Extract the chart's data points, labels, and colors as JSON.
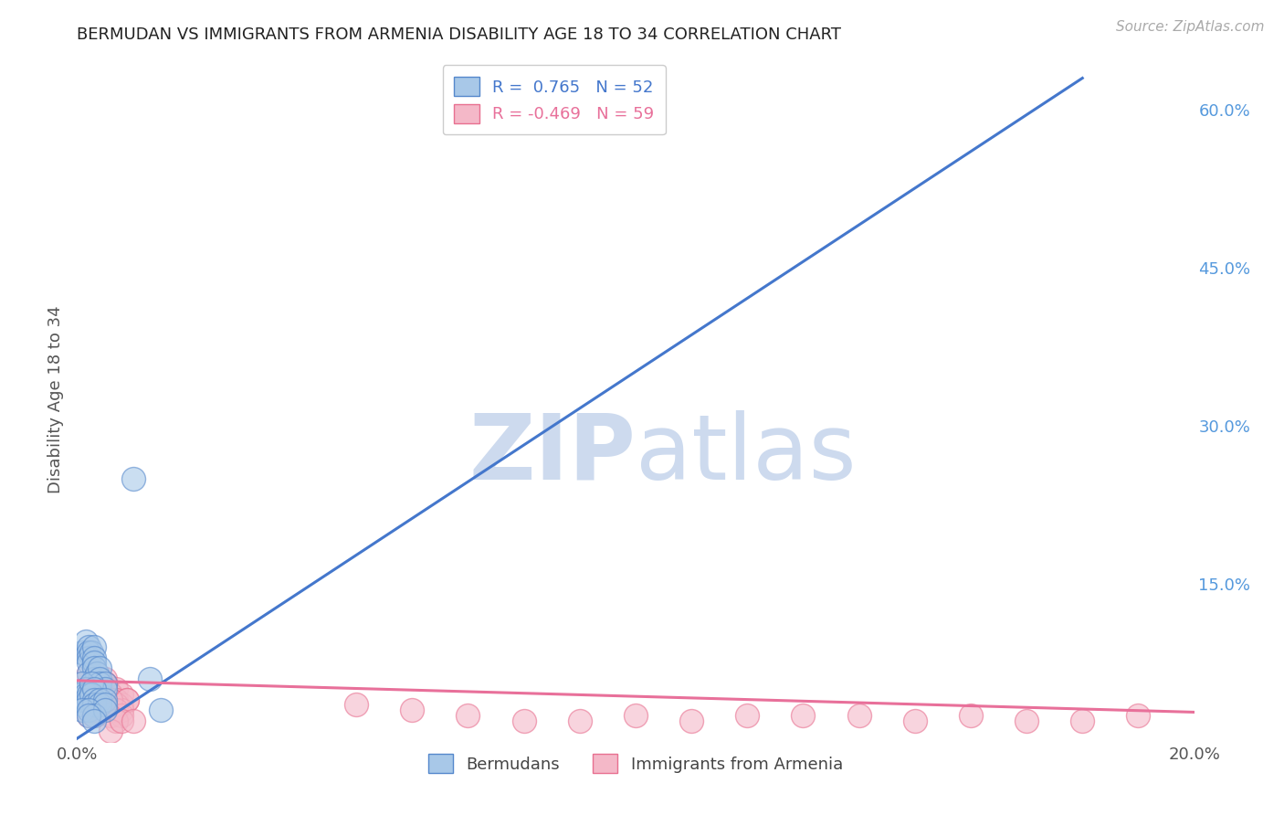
{
  "title": "BERMUDAN VS IMMIGRANTS FROM ARMENIA DISABILITY AGE 18 TO 34 CORRELATION CHART",
  "source": "Source: ZipAtlas.com",
  "ylabel": "Disability Age 18 to 34",
  "xlim": [
    0.0,
    0.2
  ],
  "ylim": [
    0.0,
    0.65
  ],
  "yticks_right": [
    0.0,
    0.15,
    0.3,
    0.45,
    0.6
  ],
  "ytick_labels_right": [
    "",
    "15.0%",
    "30.0%",
    "45.0%",
    "60.0%"
  ],
  "blue_R": 0.765,
  "blue_N": 52,
  "pink_R": -0.469,
  "pink_N": 59,
  "blue_color": "#a8c8e8",
  "pink_color": "#f4b8c8",
  "blue_edge_color": "#5588cc",
  "pink_edge_color": "#e87090",
  "blue_line_color": "#4477cc",
  "pink_line_color": "#e8709a",
  "blue_line_x0": 0.0,
  "blue_line_y0": 0.003,
  "blue_line_x1": 0.18,
  "blue_line_y1": 0.63,
  "pink_line_x0": 0.0,
  "pink_line_y0": 0.058,
  "pink_line_x1": 0.2,
  "pink_line_y1": 0.028,
  "blue_scatter_x": [
    0.001,
    0.0015,
    0.002,
    0.002,
    0.002,
    0.002,
    0.002,
    0.0025,
    0.003,
    0.003,
    0.003,
    0.003,
    0.003,
    0.003,
    0.003,
    0.0035,
    0.004,
    0.004,
    0.004,
    0.005,
    0.005,
    0.001,
    0.001,
    0.001,
    0.001,
    0.0005,
    0.0005,
    0.0008,
    0.0015,
    0.0015,
    0.0015,
    0.002,
    0.002,
    0.0025,
    0.0025,
    0.003,
    0.003,
    0.003,
    0.003,
    0.004,
    0.004,
    0.005,
    0.005,
    0.001,
    0.002,
    0.003,
    0.005,
    0.002,
    0.013,
    0.01,
    0.015,
    0.003
  ],
  "blue_scatter_y": [
    0.085,
    0.095,
    0.09,
    0.085,
    0.08,
    0.075,
    0.065,
    0.085,
    0.09,
    0.08,
    0.075,
    0.07,
    0.06,
    0.055,
    0.05,
    0.065,
    0.07,
    0.06,
    0.055,
    0.055,
    0.05,
    0.055,
    0.045,
    0.04,
    0.035,
    0.045,
    0.04,
    0.045,
    0.05,
    0.045,
    0.04,
    0.045,
    0.04,
    0.055,
    0.045,
    0.05,
    0.035,
    0.04,
    0.035,
    0.04,
    0.035,
    0.04,
    0.035,
    0.03,
    0.03,
    0.025,
    0.03,
    0.025,
    0.06,
    0.25,
    0.03,
    0.02
  ],
  "pink_scatter_x": [
    0.001,
    0.002,
    0.003,
    0.004,
    0.005,
    0.003,
    0.004,
    0.005,
    0.006,
    0.007,
    0.005,
    0.006,
    0.003,
    0.004,
    0.005,
    0.006,
    0.007,
    0.008,
    0.006,
    0.007,
    0.008,
    0.009,
    0.003,
    0.004,
    0.005,
    0.006,
    0.007,
    0.008,
    0.004,
    0.005,
    0.006,
    0.002,
    0.003,
    0.005,
    0.006,
    0.007,
    0.008,
    0.009,
    0.05,
    0.06,
    0.07,
    0.08,
    0.09,
    0.1,
    0.11,
    0.12,
    0.13,
    0.14,
    0.15,
    0.16,
    0.17,
    0.18,
    0.19,
    0.007,
    0.004,
    0.006,
    0.008,
    0.01,
    0.003
  ],
  "pink_scatter_y": [
    0.055,
    0.065,
    0.06,
    0.055,
    0.06,
    0.05,
    0.045,
    0.055,
    0.045,
    0.05,
    0.04,
    0.045,
    0.045,
    0.04,
    0.04,
    0.045,
    0.04,
    0.045,
    0.035,
    0.04,
    0.035,
    0.04,
    0.035,
    0.035,
    0.03,
    0.04,
    0.035,
    0.03,
    0.03,
    0.03,
    0.025,
    0.025,
    0.03,
    0.055,
    0.04,
    0.03,
    0.025,
    0.04,
    0.035,
    0.03,
    0.025,
    0.02,
    0.02,
    0.025,
    0.02,
    0.025,
    0.025,
    0.025,
    0.02,
    0.025,
    0.02,
    0.02,
    0.025,
    0.02,
    0.045,
    0.01,
    0.02,
    0.02,
    0.025
  ],
  "watermark_zip": "ZIP",
  "watermark_atlas": "atlas",
  "watermark_color": "#cddaee",
  "background_color": "#ffffff",
  "grid_color": "#cccccc"
}
